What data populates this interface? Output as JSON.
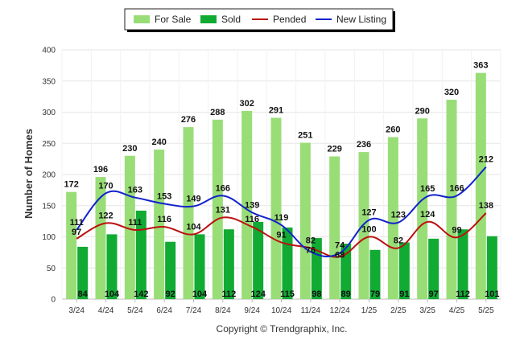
{
  "chart_data": {
    "type": "bar",
    "categories": [
      "3/24",
      "4/24",
      "5/24",
      "6/24",
      "7/24",
      "8/24",
      "9/24",
      "10/24",
      "11/24",
      "12/24",
      "1/25",
      "2/25",
      "3/25",
      "4/25",
      "5/25"
    ],
    "series": [
      {
        "name": "For Sale",
        "kind": "bar",
        "color": "#99dd77",
        "values": [
          172,
          196,
          230,
          240,
          276,
          288,
          302,
          291,
          251,
          229,
          236,
          260,
          290,
          320,
          363
        ]
      },
      {
        "name": "Sold",
        "kind": "bar",
        "color": "#11aa33",
        "values": [
          84,
          104,
          142,
          92,
          104,
          112,
          124,
          115,
          98,
          89,
          79,
          91,
          97,
          112,
          101
        ]
      },
      {
        "name": "Pended",
        "kind": "line",
        "color": "#bb1111",
        "values": [
          97,
          122,
          111,
          116,
          104,
          131,
          116,
          91,
          82,
          68,
          100,
          82,
          124,
          99,
          138
        ]
      },
      {
        "name": "New Listing",
        "kind": "line",
        "color": "#1122cc",
        "values": [
          111,
          170,
          163,
          153,
          149,
          166,
          139,
          119,
          76,
          74,
          127,
          123,
          165,
          166,
          212
        ]
      }
    ],
    "ylabel": "Number of Homes",
    "xlabel": "",
    "ylim": [
      0,
      400
    ],
    "yticks": [
      0,
      50,
      100,
      150,
      200,
      250,
      300,
      350,
      400
    ],
    "grid": true,
    "legend": "top-center"
  },
  "footer": {
    "copyright": "Copyright © Trendgraphix, Inc."
  }
}
